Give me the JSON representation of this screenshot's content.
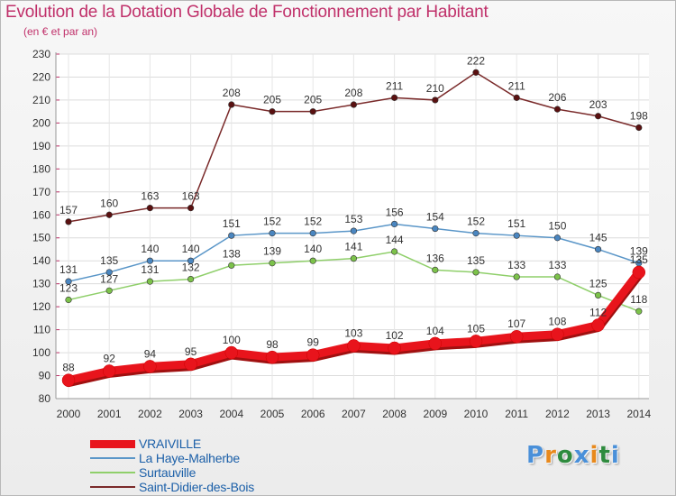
{
  "header": {
    "title": "Evolution de la Dotation Globale de Fonctionnement par Habitant",
    "subtitle": "(en € et par an)"
  },
  "brand": {
    "logo_text": "Proxiti",
    "letter_colors": [
      "#4a90d9",
      "#e8891c",
      "#2e8b3e",
      "#4a90d9",
      "#e8891c",
      "#2e8b3e",
      "#4a90d9"
    ]
  },
  "chart_data": {
    "type": "line",
    "title": "Evolution de la Dotation Globale de Fonctionnement par Habitant",
    "subtitle": "(en € et par an)",
    "xlabel": "",
    "ylabel": "",
    "ylim": [
      80,
      230
    ],
    "y_ticks": [
      80,
      90,
      100,
      110,
      120,
      130,
      140,
      150,
      160,
      170,
      180,
      190,
      200,
      210,
      220,
      230
    ],
    "categories": [
      "2000",
      "2001",
      "2002",
      "2003",
      "2004",
      "2005",
      "2006",
      "2007",
      "2008",
      "2009",
      "2010",
      "2011",
      "2012",
      "2013",
      "2014"
    ],
    "grid": true,
    "legend_position": "bottom-left",
    "series": [
      {
        "name": "Saint-Didier-des-Bois",
        "color": "#7a2a2a",
        "marker_color": "#5a1010",
        "emphasis": false,
        "values": [
          157,
          160,
          163,
          163,
          208,
          205,
          205,
          208,
          211,
          210,
          222,
          211,
          206,
          203,
          198
        ],
        "labels": [
          "157",
          "160",
          "163",
          "163",
          "208",
          "205",
          "205",
          "208",
          "211",
          "210",
          "222",
          "211",
          "206",
          "203",
          "198"
        ]
      },
      {
        "name": "La Haye-Malherbe",
        "color": "#5a96c8",
        "marker_color": "#4a86c0",
        "emphasis": false,
        "values": [
          131,
          135,
          140,
          140,
          151,
          152,
          152,
          153,
          156,
          154,
          152,
          151,
          150,
          145,
          139
        ],
        "labels": [
          "131",
          "135",
          "140",
          "140",
          "151",
          "152",
          "152",
          "153",
          "156",
          "154",
          "152",
          "151",
          "150",
          "145",
          "139"
        ]
      },
      {
        "name": "Surtauville",
        "color": "#8fcf6a",
        "marker_color": "#7cc24a",
        "emphasis": false,
        "values": [
          123,
          127,
          131,
          132,
          138,
          139,
          140,
          141,
          144,
          136,
          135,
          133,
          133,
          125,
          118
        ],
        "labels": [
          "123",
          "127",
          "131",
          "132",
          "138",
          "139",
          "140",
          "141",
          "144",
          "136",
          "135",
          "133",
          "133",
          "125",
          "118"
        ]
      },
      {
        "name": "VRAIVILLE",
        "color": "#e8141c",
        "marker_color": "#e8141c",
        "emphasis": true,
        "values": [
          88,
          92,
          94,
          95,
          100,
          98,
          99,
          103,
          102,
          104,
          105,
          107,
          108,
          112,
          135
        ],
        "labels": [
          "88",
          "92",
          "94",
          "95",
          "100",
          "98",
          "99",
          "103",
          "102",
          "104",
          "105",
          "107",
          "108",
          "112",
          "135"
        ]
      }
    ],
    "legend_order": [
      "VRAIVILLE",
      "La Haye-Malherbe",
      "Surtauville",
      "Saint-Didier-des-Bois"
    ]
  }
}
